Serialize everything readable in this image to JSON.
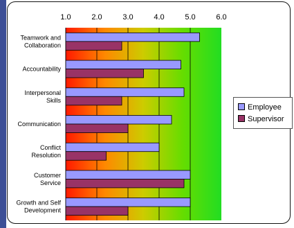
{
  "chart_data": {
    "type": "bar",
    "orientation": "horizontal",
    "categories": [
      [
        "Teamwork and",
        "Collaboration"
      ],
      [
        "Accountability"
      ],
      [
        "Interpersonal",
        "Skills"
      ],
      [
        "Communication"
      ],
      [
        "Conflict",
        "Resolution"
      ],
      [
        "Customer",
        "Service"
      ],
      [
        "Growth and Self",
        "Development"
      ]
    ],
    "series": [
      {
        "name": "Employee",
        "color": "#9999ff",
        "values": [
          5.3,
          4.7,
          4.8,
          4.4,
          4.0,
          5.0,
          5.0
        ]
      },
      {
        "name": "Supervisor",
        "color": "#993366",
        "values": [
          2.8,
          3.5,
          2.8,
          3.0,
          2.3,
          4.8,
          3.0
        ]
      }
    ],
    "xlim": [
      1.0,
      6.0
    ],
    "ticks": [
      "1.0",
      "2.0",
      "3.0",
      "4.0",
      "5.0",
      "6.0"
    ],
    "tick_axis_position": "top",
    "grid": true,
    "legend_position": "right",
    "background_gradient": [
      "#ff1a00",
      "#ff8800",
      "#cccc00",
      "#66dd00",
      "#22dd22"
    ]
  }
}
